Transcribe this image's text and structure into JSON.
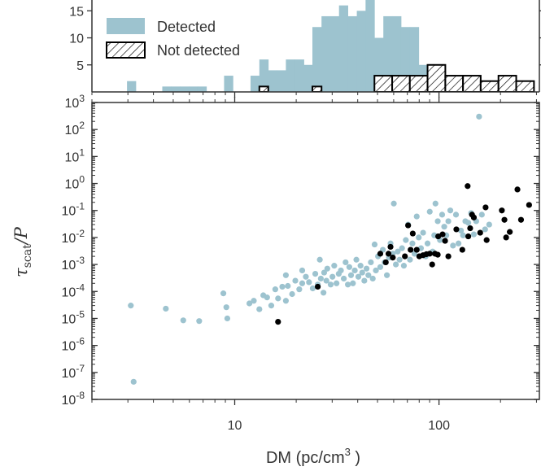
{
  "chart_data": [
    {
      "type": "histogram",
      "x_scale": "log",
      "xlim": [
        2.0,
        310.0
      ],
      "ylim": [
        0,
        17
      ],
      "ytick_labels": [
        "5",
        "10",
        "15"
      ],
      "yticks": [
        5,
        10,
        15
      ],
      "legend_position": "top-left",
      "colors": {
        "detected": "#9dc3cf",
        "not_detected_edge": "#000000"
      },
      "series": [
        {
          "name": "Detected",
          "style": "filled",
          "bins": [
            [
              2.97,
              3.28,
              2
            ],
            [
              4.42,
              4.88,
              1
            ],
            [
              4.88,
              5.39,
              1
            ],
            [
              5.39,
              5.96,
              1
            ],
            [
              5.96,
              6.58,
              1
            ],
            [
              6.58,
              7.27,
              1
            ],
            [
              8.87,
              9.8,
              3
            ],
            [
              11.95,
              13.2,
              3
            ],
            [
              13.2,
              14.6,
              6
            ],
            [
              14.6,
              16.1,
              4
            ],
            [
              16.1,
              17.8,
              4
            ],
            [
              17.8,
              19.7,
              6
            ],
            [
              19.7,
              21.8,
              6
            ],
            [
              21.8,
              24.0,
              5
            ],
            [
              24.0,
              26.6,
              12
            ],
            [
              26.6,
              29.3,
              14
            ],
            [
              29.3,
              32.4,
              14
            ],
            [
              32.4,
              35.8,
              16
            ],
            [
              35.8,
              39.6,
              14
            ],
            [
              39.6,
              43.7,
              15
            ],
            [
              43.7,
              48.3,
              17
            ],
            [
              48.3,
              53.4,
              10
            ],
            [
              53.4,
              59.0,
              14
            ],
            [
              59.0,
              65.2,
              14
            ],
            [
              65.2,
              72.0,
              12
            ],
            [
              72.0,
              79.6,
              12
            ],
            [
              79.6,
              87.9,
              5
            ],
            [
              87.9,
              97.2,
              4
            ],
            [
              97.2,
              107.4,
              5
            ],
            [
              107.4,
              118.6,
              3
            ],
            [
              118.6,
              131.1,
              3
            ],
            [
              131.1,
              144.8,
              2
            ],
            [
              144.8,
              160.0,
              2
            ]
          ]
        },
        {
          "name": "Not detected",
          "style": "hatched",
          "bins": [
            [
              13.2,
              14.6,
              1
            ],
            [
              24.0,
              26.6,
              1
            ],
            [
              48.3,
              59.0,
              3
            ],
            [
              59.0,
              72.0,
              3
            ],
            [
              72.0,
              87.9,
              3
            ],
            [
              87.9,
              107.4,
              5
            ],
            [
              107.4,
              131.1,
              3
            ],
            [
              131.1,
              160.0,
              3
            ],
            [
              160.0,
              195.5,
              2
            ],
            [
              195.5,
              238.8,
              3
            ],
            [
              238.8,
              291.7,
              2
            ]
          ]
        }
      ]
    },
    {
      "type": "scatter",
      "x_scale": "log",
      "y_scale": "log",
      "xlim": [
        2.0,
        310.0
      ],
      "ylim": [
        1e-08,
        1000
      ],
      "xlabel": "DM (pc/cm",
      "xlabel_sup": "3",
      "xlabel_end": " )",
      "ylabel_main": "τ",
      "ylabel_sub": "scat",
      "ylabel_end": "/P",
      "xtick_values": [
        10,
        100
      ],
      "xtick_labels": [
        "10",
        "100"
      ],
      "ytick_exponents": [
        "-8",
        "-7",
        "-6",
        "-5",
        "-4",
        "-3",
        "-2",
        "-1",
        "0",
        "1",
        "2",
        "3"
      ],
      "ytick_base": "10",
      "colors": {
        "detected": "#9dc3cf",
        "not_detected": "#000000"
      },
      "series": [
        {
          "name": "Detected",
          "points": [
            [
              3.1,
              3e-05
            ],
            [
              3.2,
              4.5e-08
            ],
            [
              4.6,
              2.3e-05
            ],
            [
              5.6,
              8.5e-06
            ],
            [
              6.7,
              8e-06
            ],
            [
              8.8,
              8.5e-05
            ],
            [
              9.1,
              2.6e-05
            ],
            [
              9.2,
              1e-05
            ],
            [
              11.8,
              3.6e-05
            ],
            [
              12.4,
              4.5e-05
            ],
            [
              13.2,
              2.2e-05
            ],
            [
              13.8,
              7.2e-05
            ],
            [
              14.4,
              6e-05
            ],
            [
              15.1,
              3e-05
            ],
            [
              15.8,
              0.00012
            ],
            [
              16.3,
              5.5e-05
            ],
            [
              17.8,
              4.5e-05
            ],
            [
              17.1,
              0.00015
            ],
            [
              17.8,
              0.0004
            ],
            [
              18.2,
              0.00016
            ],
            [
              19.1,
              8e-05
            ],
            [
              19.8,
              0.00025
            ],
            [
              20.7,
              0.00012
            ],
            [
              21.4,
              0.0002
            ],
            [
              21.4,
              0.0006
            ],
            [
              22.3,
              0.00035
            ],
            [
              23.1,
              0.00022
            ],
            [
              24.1,
              0.00013
            ],
            [
              24.8,
              0.00045
            ],
            [
              25.5,
              0.00018
            ],
            [
              26.1,
              0.0015
            ],
            [
              26.4,
              0.0003
            ],
            [
              27.2,
              9e-05
            ],
            [
              27.4,
              0.0005
            ],
            [
              28.1,
              0.00025
            ],
            [
              28.4,
              0.0007
            ],
            [
              29.5,
              0.00018
            ],
            [
              30.1,
              0.00035
            ],
            [
              30.7,
              0.0009
            ],
            [
              31.5,
              0.0002
            ],
            [
              32.3,
              0.00045
            ],
            [
              33.1,
              0.0006
            ],
            [
              34.2,
              0.0003
            ],
            [
              34.9,
              0.0012
            ],
            [
              35.8,
              0.00018
            ],
            [
              36.4,
              0.0008
            ],
            [
              37.1,
              0.0004
            ],
            [
              37.9,
              0.0002
            ],
            [
              38.7,
              0.0006
            ],
            [
              39.4,
              0.0015
            ],
            [
              40.3,
              0.00035
            ],
            [
              41.3,
              0.0009
            ],
            [
              42.1,
              0.0005
            ],
            [
              43.1,
              0.00025
            ],
            [
              44.2,
              0.0007
            ],
            [
              45.1,
              0.0004
            ],
            [
              46.4,
              0.0012
            ],
            [
              47.4,
              0.0003
            ],
            [
              48.4,
              0.0055
            ],
            [
              49.1,
              0.0006
            ],
            [
              50.3,
              0.002
            ],
            [
              51.6,
              0.0008
            ],
            [
              53.1,
              0.0035
            ],
            [
              54.2,
              0.0012
            ],
            [
              55.6,
              0.0004
            ],
            [
              56.9,
              0.0018
            ],
            [
              57.9,
              0.006
            ],
            [
              59.4,
              0.0025
            ],
            [
              60.1,
              0.18
            ],
            [
              61.5,
              0.001
            ],
            [
              62.8,
              0.003
            ],
            [
              64.1,
              0.0015
            ],
            [
              65.9,
              0.004
            ],
            [
              67.3,
              0.0009
            ],
            [
              68.8,
              0.008
            ],
            [
              70.6,
              0.03
            ],
            [
              72.1,
              0.0015
            ],
            [
              74.1,
              0.006
            ],
            [
              75.9,
              0.0025
            ],
            [
              77.8,
              0.06
            ],
            [
              79.6,
              0.01
            ],
            [
              81.6,
              0.004
            ],
            [
              83.6,
              0.015
            ],
            [
              86.1,
              0.002
            ],
            [
              87.9,
              0.006
            ],
            [
              90.1,
              0.09
            ],
            [
              93.1,
              0.003
            ],
            [
              94.8,
              0.012
            ],
            [
              96.1,
              0.18
            ],
            [
              98.6,
              0.04
            ],
            [
              101.1,
              0.008
            ],
            [
              103.6,
              0.07
            ],
            [
              106.1,
              0.025
            ],
            [
              108.6,
              0.012
            ],
            [
              111.1,
              0.04
            ],
            [
              113.6,
              0.1
            ],
            [
              117.1,
              0.005
            ],
            [
              121.1,
              0.07
            ],
            [
              124.6,
              0.006
            ],
            [
              128.1,
              0.018
            ],
            [
              131.1,
              0.012
            ],
            [
              134.6,
              0.04
            ],
            [
              139.1,
              0.035
            ],
            [
              143.6,
              0.08
            ],
            [
              148.1,
              0.013
            ],
            [
              152.1,
              0.04
            ],
            [
              157.1,
              300
            ],
            [
              162.1,
              0.07
            ],
            [
              168.1,
              0.02
            ],
            [
              176.1,
              0.03
            ]
          ]
        },
        {
          "name": "Not detected",
          "points": [
            [
              16.3,
              7.5e-06
            ],
            [
              25.5,
              0.00015
            ],
            [
              51.6,
              0.0025
            ],
            [
              54.9,
              0.0012
            ],
            [
              56.6,
              0.0025
            ],
            [
              57.9,
              0.0045
            ],
            [
              59.4,
              0.0018
            ],
            [
              68.1,
              0.002
            ],
            [
              70.6,
              0.028
            ],
            [
              72.6,
              0.0035
            ],
            [
              74.4,
              0.014
            ],
            [
              77.8,
              0.0035
            ],
            [
              80.1,
              0.002
            ],
            [
              83.6,
              0.0022
            ],
            [
              86.8,
              0.0024
            ],
            [
              90.1,
              0.0025
            ],
            [
              92.6,
              0.001
            ],
            [
              95.6,
              0.0025
            ],
            [
              98.6,
              0.0023
            ],
            [
              99.1,
              0.011
            ],
            [
              104.1,
              0.013
            ],
            [
              107.1,
              0.0075
            ],
            [
              111.1,
              0.002
            ],
            [
              121.6,
              0.02
            ],
            [
              130.1,
              0.0035
            ],
            [
              138.1,
              0.8
            ],
            [
              139.1,
              0.011
            ],
            [
              142.1,
              0.022
            ],
            [
              145.1,
              0.07
            ],
            [
              148.1,
              0.055
            ],
            [
              159.1,
              0.015
            ],
            [
              169.1,
              0.13
            ],
            [
              171.1,
              0.008
            ],
            [
              203.1,
              0.1
            ],
            [
              209.1,
              0.045
            ],
            [
              213.1,
              0.01
            ],
            [
              222.1,
              0.016
            ],
            [
              242.1,
              0.6
            ],
            [
              252.1,
              0.045
            ],
            [
              276.1,
              0.16
            ]
          ]
        }
      ]
    }
  ]
}
